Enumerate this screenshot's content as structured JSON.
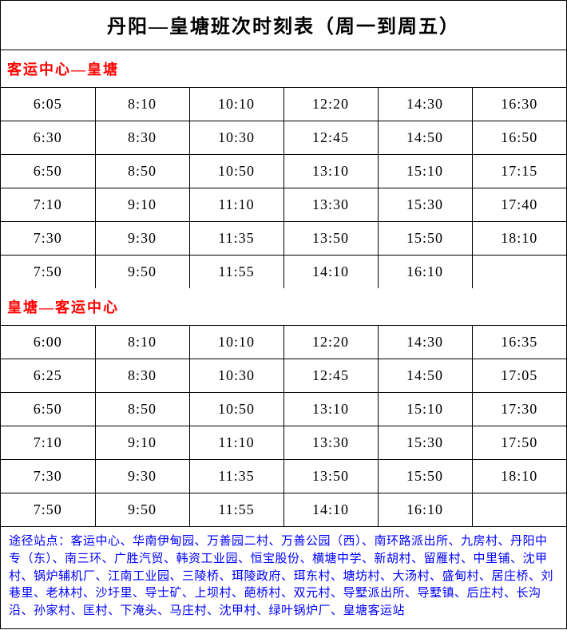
{
  "title": "丹阳—皇塘班次时刻表（周一到周五）",
  "section1": {
    "header": "客运中心—皇塘",
    "rows": [
      [
        "6:05",
        "8:10",
        "10:10",
        "12:20",
        "14:30",
        "16:30"
      ],
      [
        "6:30",
        "8:30",
        "10:30",
        "12:45",
        "14:50",
        "16:50"
      ],
      [
        "6:50",
        "8:50",
        "10:50",
        "13:10",
        "15:10",
        "17:15"
      ],
      [
        "7:10",
        "9:10",
        "11:10",
        "13:30",
        "15:30",
        "17:40"
      ],
      [
        "7:30",
        "9:30",
        "11:35",
        "13:50",
        "15:50",
        "18:10"
      ],
      [
        "7:50",
        "9:50",
        "11:55",
        "14:10",
        "16:10",
        ""
      ]
    ]
  },
  "section2": {
    "header": "皇塘—客运中心",
    "rows": [
      [
        "6:00",
        "8:10",
        "10:10",
        "12:20",
        "14:30",
        "16:35"
      ],
      [
        "6:25",
        "8:30",
        "10:30",
        "12:45",
        "14:50",
        "17:05"
      ],
      [
        "6:50",
        "8:50",
        "10:50",
        "13:10",
        "15:10",
        "17:30"
      ],
      [
        "7:10",
        "9:10",
        "11:10",
        "13:30",
        "15:30",
        "17:50"
      ],
      [
        "7:30",
        "9:30",
        "11:35",
        "13:50",
        "15:50",
        "18:10"
      ],
      [
        "7:50",
        "9:50",
        "11:55",
        "14:10",
        "16:10",
        ""
      ]
    ]
  },
  "footer_note": "途径站点：客运中心、华南伊甸园、万善园二村、万善公园（西）、南环路派出所、九房村、丹阳中专（东）、南三环、广胜汽贸、韩资工业园、恒宝股份、横塘中学、新胡村、留雁村、中里铺、沈甲村、锅炉辅机厂、江南工业园、三陵桥、珥陵政府、珥东村、塘坊村、大汤村、盛甸村、居庄桥、刘巷里、老林村、沙圩里、导士矿、上坝村、葩桥村、双元村、导墅派出所、导墅镇、后庄村、长沟沿、孙家村、匡村、下淹头、马庄村、沈甲村、绿叶锅炉厂、皇塘客运站",
  "colors": {
    "header_text": "#ff0000",
    "footer_text": "#0000ff",
    "border": "#000000"
  }
}
